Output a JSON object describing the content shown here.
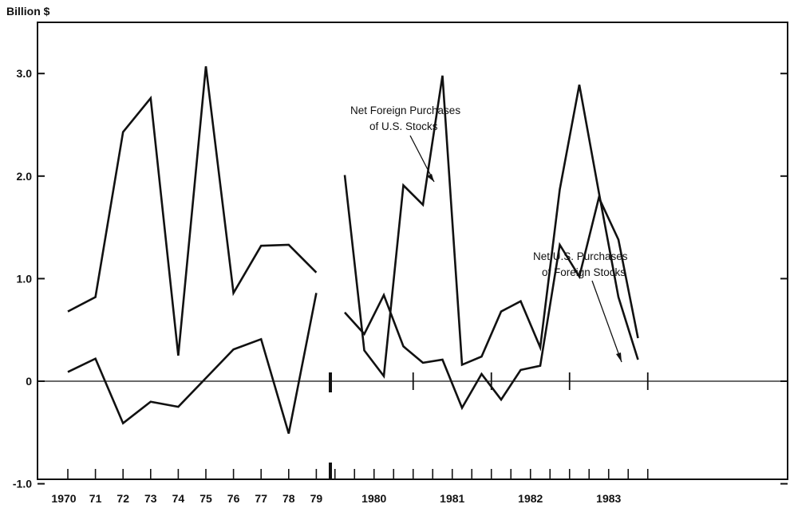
{
  "chart_data": {
    "type": "line",
    "ylabel": "Billion $",
    "ylim": [
      -1.0,
      3.5
    ],
    "yticks": [
      {
        "value": 3.0,
        "label": "3.0"
      },
      {
        "value": 2.0,
        "label": "2.0"
      },
      {
        "value": 1.0,
        "label": "1.0"
      },
      {
        "value": 0,
        "label": "0"
      },
      {
        "value": -1.0,
        "label": "-1.0"
      }
    ],
    "grid": false,
    "annual_period": {
      "x_labels": [
        "1970",
        "71",
        "72",
        "73",
        "74",
        "75",
        "76",
        "77",
        "78",
        "79"
      ],
      "series": [
        {
          "name": "Net Foreign Purchases of U.S. Stocks",
          "values": [
            0.68,
            0.82,
            2.43,
            2.76,
            0.25,
            3.07,
            0.86,
            1.32,
            1.33,
            1.06
          ]
        },
        {
          "name": "Net U.S. Purchases of Foreign Stocks",
          "values": [
            0.09,
            0.22,
            -0.41,
            -0.2,
            -0.25,
            0.03,
            0.31,
            0.41,
            -0.51,
            0.86
          ]
        }
      ]
    },
    "quarterly_period": {
      "year_labels": [
        "1980",
        "1981",
        "1982",
        "1983"
      ],
      "quarters_per_year": 4,
      "series": [
        {
          "name": "Net Foreign Purchases of U.S. Stocks",
          "values": [
            2.01,
            0.3,
            0.05,
            1.91,
            1.72,
            2.98,
            0.16,
            0.24,
            0.68,
            0.78,
            0.33,
            1.87,
            2.89,
            1.84,
            0.82,
            0.21
          ]
        },
        {
          "name": "Net U.S. Purchases of Foreign Stocks",
          "values": [
            0.67,
            0.46,
            0.84,
            0.34,
            0.18,
            0.21,
            -0.26,
            0.07,
            -0.18,
            0.11,
            0.15,
            1.33,
            1.02,
            1.79,
            1.38,
            0.42
          ]
        }
      ]
    },
    "annotations": [
      {
        "lines": [
          "Net Foreign Purchases",
          "of U.S. Stocks"
        ],
        "series": 0
      },
      {
        "lines": [
          "Net U.S. Purchases",
          "of Foreign Stocks"
        ],
        "series": 1
      }
    ]
  }
}
